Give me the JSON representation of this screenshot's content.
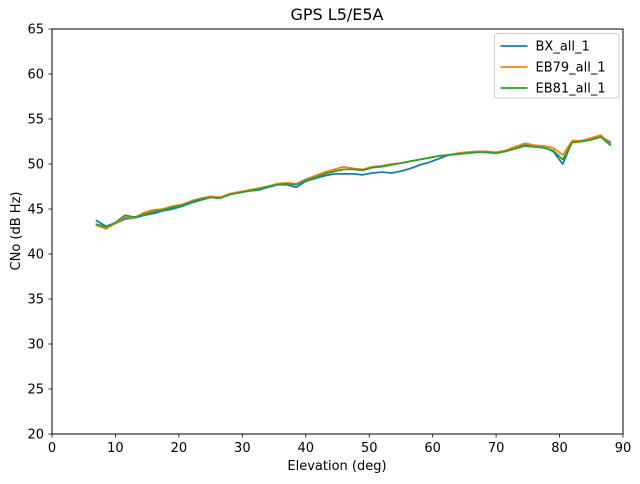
{
  "chart_data": {
    "type": "line",
    "title": "GPS L5/E5A",
    "xlabel": "Elevation (deg)",
    "ylabel": "CNo (dB Hz)",
    "xlim": [
      0,
      90
    ],
    "ylim": [
      20,
      65
    ],
    "xticks": [
      0,
      10,
      20,
      30,
      40,
      50,
      60,
      70,
      80,
      90
    ],
    "yticks": [
      20,
      25,
      30,
      35,
      40,
      45,
      50,
      55,
      60,
      65
    ],
    "grid": false,
    "legend_position": "upper right",
    "background_color": "#ffffff",
    "x": [
      7,
      8.5,
      10,
      11.5,
      13,
      14.5,
      16,
      17.5,
      19,
      20.5,
      22,
      23.5,
      25,
      26.5,
      28,
      29.5,
      31,
      32.5,
      34,
      35.5,
      37,
      38.5,
      40,
      41.5,
      43,
      44.5,
      46,
      47.5,
      49,
      50.5,
      52,
      53.5,
      55,
      56.5,
      58,
      59.5,
      61,
      62.5,
      64,
      65.5,
      67,
      68.5,
      70,
      71.5,
      73,
      74.5,
      76,
      77.5,
      79,
      80.5,
      82,
      83.5,
      85,
      86.5,
      88
    ],
    "series": [
      {
        "name": "BX_all_1",
        "color": "#1f77b4",
        "values": [
          43.7,
          43.1,
          43.4,
          43.9,
          44.0,
          44.3,
          44.5,
          44.8,
          45.0,
          45.3,
          45.7,
          46.0,
          46.3,
          46.2,
          46.7,
          46.8,
          47.0,
          47.1,
          47.4,
          47.7,
          47.7,
          47.4,
          48.1,
          48.4,
          48.7,
          48.9,
          48.9,
          48.9,
          48.8,
          49.0,
          49.1,
          49.0,
          49.2,
          49.5,
          49.9,
          50.2,
          50.6,
          51.0,
          51.2,
          51.3,
          51.4,
          51.3,
          51.2,
          51.5,
          51.9,
          52.1,
          52.0,
          51.9,
          51.4,
          50.0,
          52.5,
          52.6,
          52.8,
          53.1,
          52.4
        ]
      },
      {
        "name": "EB79_all_1",
        "color": "#ff7f0e",
        "values": [
          43.2,
          42.8,
          43.4,
          44.1,
          44.0,
          44.6,
          44.9,
          45.0,
          45.3,
          45.5,
          45.9,
          46.2,
          46.4,
          46.3,
          46.7,
          46.9,
          47.1,
          47.3,
          47.5,
          47.8,
          47.9,
          47.8,
          48.3,
          48.7,
          49.1,
          49.4,
          49.7,
          49.5,
          49.4,
          49.7,
          49.8,
          50.0,
          50.1,
          50.3,
          50.5,
          50.7,
          50.9,
          51.0,
          51.2,
          51.3,
          51.4,
          51.4,
          51.3,
          51.5,
          51.9,
          52.3,
          52.1,
          52.0,
          51.8,
          51.0,
          52.6,
          52.6,
          52.9,
          53.2,
          52.2
        ]
      },
      {
        "name": "EB81_all_1",
        "color": "#2ca02c",
        "values": [
          43.3,
          43.0,
          43.5,
          44.3,
          44.1,
          44.4,
          44.7,
          44.9,
          45.2,
          45.4,
          45.8,
          46.1,
          46.3,
          46.2,
          46.6,
          46.8,
          47.0,
          47.2,
          47.5,
          47.7,
          47.8,
          47.7,
          48.2,
          48.5,
          48.9,
          49.2,
          49.4,
          49.4,
          49.3,
          49.6,
          49.7,
          49.9,
          50.1,
          50.3,
          50.5,
          50.7,
          50.9,
          51.0,
          51.1,
          51.2,
          51.3,
          51.3,
          51.2,
          51.4,
          51.7,
          52.0,
          51.9,
          51.8,
          51.5,
          50.5,
          52.4,
          52.5,
          52.7,
          53.0,
          52.1
        ]
      }
    ]
  }
}
